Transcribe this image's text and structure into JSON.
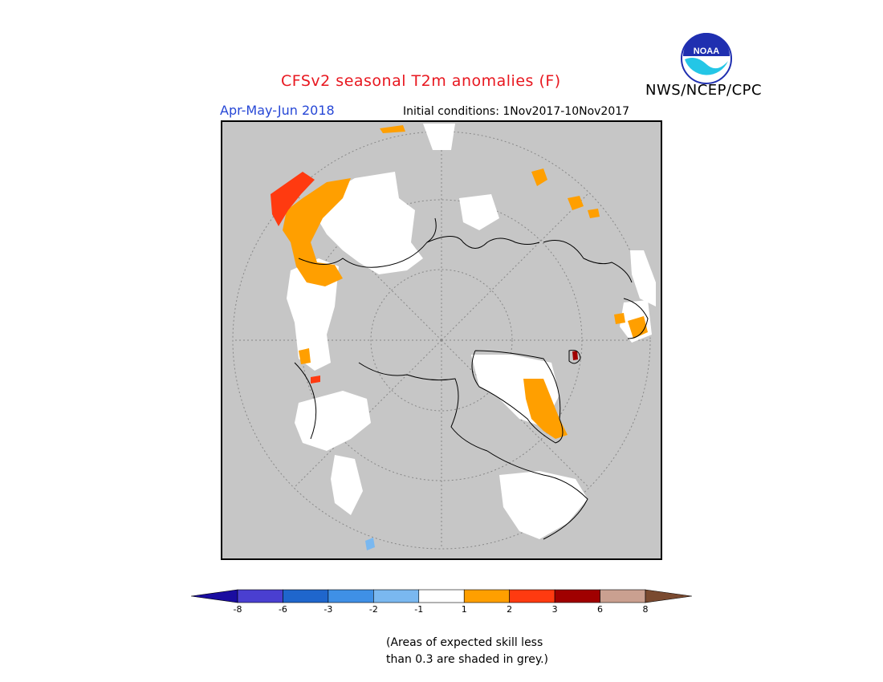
{
  "header": {
    "title": "CFSv2 seasonal T2m anomalies (F)",
    "period": "Apr-May-Jun 2018",
    "initial_conditions": "Initial conditions: 1Nov2017-10Nov2017",
    "agency": "NWS/NCEP/CPC",
    "logo_text": "NOAA"
  },
  "colors": {
    "title": "#e8171f",
    "period": "#2647d6",
    "grey_low_skill": "#c6c6c6",
    "land_outline": "#000000"
  },
  "legend": {
    "bins": [
      {
        "color": "#1a0da0"
      },
      {
        "color": "#4a3fd0"
      },
      {
        "color": "#1f66cc"
      },
      {
        "color": "#3f90e6"
      },
      {
        "color": "#7ab8f0"
      },
      {
        "color": "#ffffff"
      },
      {
        "color": "#ff9f00"
      },
      {
        "color": "#ff3a10"
      },
      {
        "color": "#a00000"
      },
      {
        "color": "#caa090"
      },
      {
        "color": "#7a4a30"
      }
    ],
    "tick_labels": [
      "-8",
      "-6",
      "-3",
      "-2",
      "-1",
      "1",
      "2",
      "3",
      "6",
      "8"
    ]
  },
  "map": {
    "projection": "north polar stereographic",
    "regions": [
      {
        "area": "Western Siberia / Central Russia",
        "anomaly": "1 to 2",
        "color": "#ff9f00"
      },
      {
        "area": "Northwest Russia",
        "anomaly": "2 to 3",
        "color": "#ff3a10"
      },
      {
        "area": "Greenland (central/south)",
        "anomaly": "1 to 2",
        "color": "#ff9f00"
      },
      {
        "area": "Northern Canada / Alaska",
        "anomaly": "-1 to 1",
        "color": "#ffffff"
      },
      {
        "area": "Aleutians",
        "anomaly": "-2 to -1",
        "color": "#7ab8f0"
      }
    ]
  },
  "note": {
    "line1": "(Areas of expected skill less",
    "line2": "than 0.3 are shaded in grey.)"
  }
}
